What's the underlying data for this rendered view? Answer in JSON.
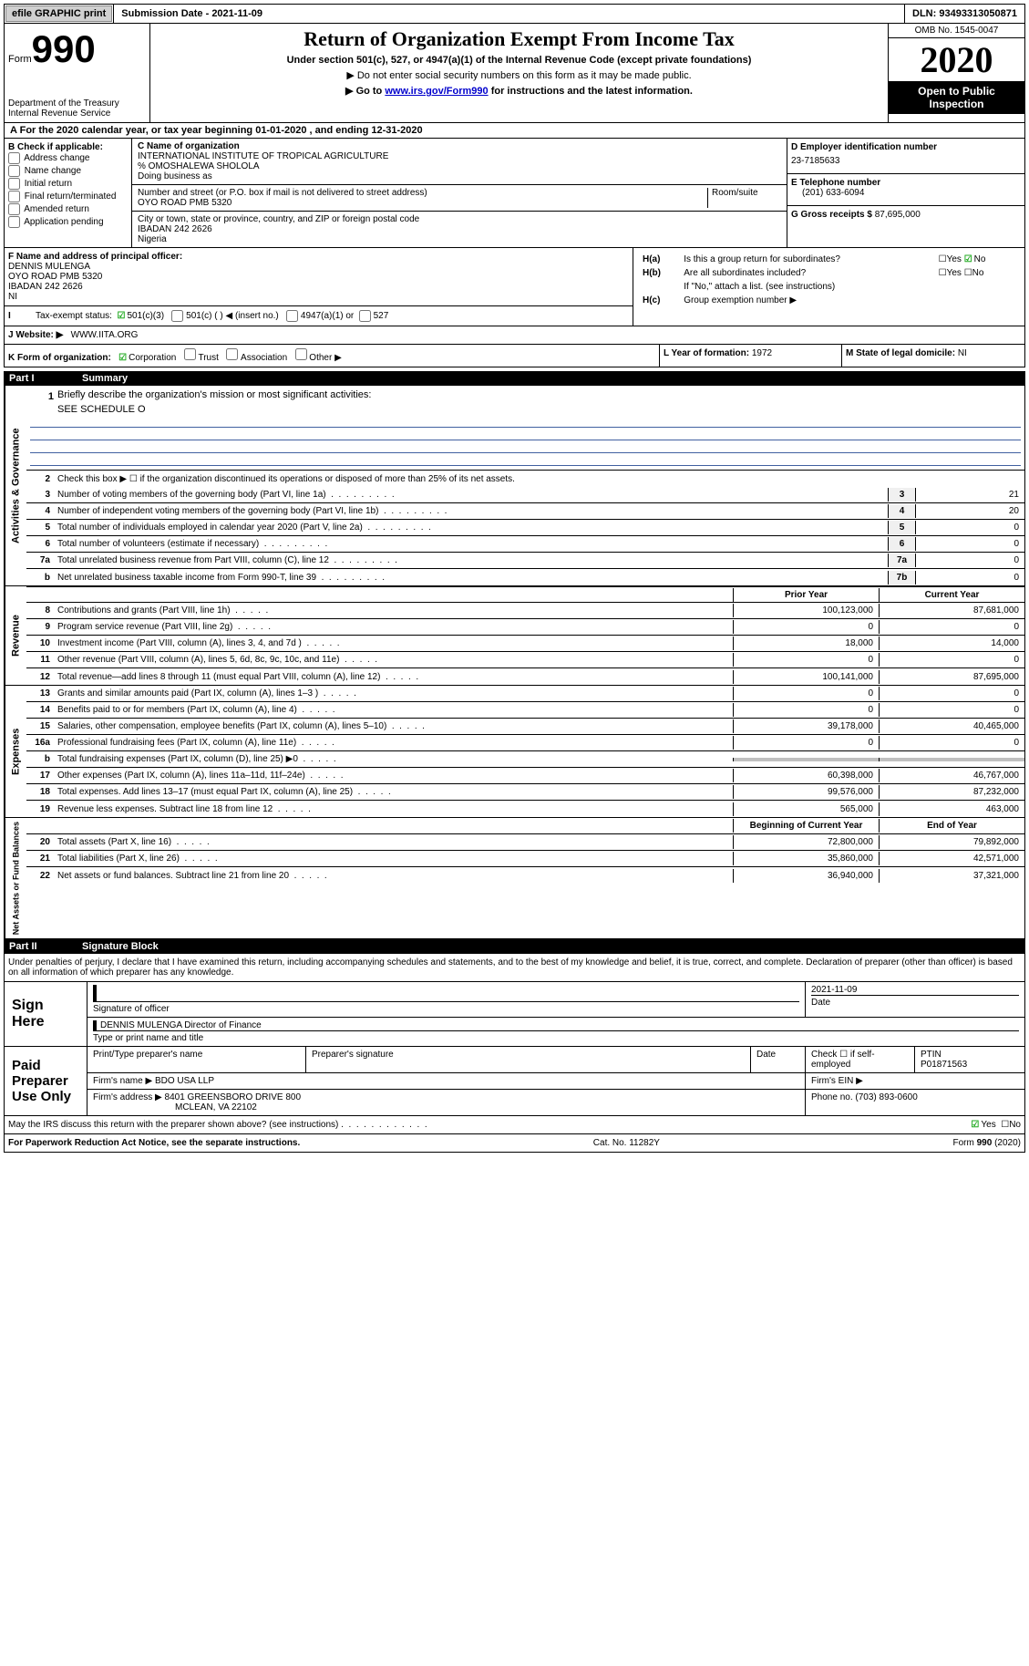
{
  "topbar": {
    "efile_btn": "efile GRAPHIC print",
    "submission_label": "Submission Date - 2021-11-09",
    "dln": "DLN: 93493313050871"
  },
  "header": {
    "form_label": "Form",
    "form_number": "990",
    "dept": "Department of the Treasury\nInternal Revenue Service",
    "title": "Return of Organization Exempt From Income Tax",
    "subtitle": "Under section 501(c), 527, or 4947(a)(1) of the Internal Revenue Code (except private foundations)",
    "line2": "Do not enter social security numbers on this form as it may be made public.",
    "line3_pre": "Go to ",
    "line3_link": "www.irs.gov/Form990",
    "line3_post": " for instructions and the latest information.",
    "omb": "OMB No. 1545-0047",
    "year": "2020",
    "inspection": "Open to Public Inspection"
  },
  "row_a": "For the 2020 calendar year, or tax year beginning 01-01-2020    , and ending 12-31-2020",
  "box_b": {
    "header": "B Check if applicable:",
    "opts": [
      "Address change",
      "Name change",
      "Initial return",
      "Final return/terminated",
      "Amended return",
      "Application pending"
    ]
  },
  "box_c": {
    "name_label": "C Name of organization",
    "name_value": "INTERNATIONAL INSTITUTE OF TROPICAL AGRICULTURE",
    "care_of": "% OMOSHALEWA SHOLOLA",
    "dba_label": "Doing business as",
    "street_label": "Number and street (or P.O. box if mail is not delivered to street address)",
    "street_value": "OYO ROAD PMB 5320",
    "room_label": "Room/suite",
    "city_label": "City or town, state or province, country, and ZIP or foreign postal code",
    "city_value": "IBADAN   242 2626",
    "country": "Nigeria"
  },
  "box_d": {
    "ein_label": "D Employer identification number",
    "ein_value": "23-7185633",
    "phone_label": "E Telephone number",
    "phone_value": "(201) 633-6094",
    "gross_label": "G Gross receipts $",
    "gross_value": "87,695,000"
  },
  "box_f": {
    "label": "F  Name and address of principal officer:",
    "name": "DENNIS MULENGA",
    "addr1": "OYO ROAD PMB 5320",
    "addr2": "IBADAN      242 2626",
    "addr3": "NI"
  },
  "box_h": {
    "ha": "Is this a group return for subordinates?",
    "hb": "Are all subordinates included?",
    "note": "If \"No,\" attach a list. (see instructions)",
    "hc": "Group exemption number ▶"
  },
  "row_i": {
    "label": "Tax-exempt status:",
    "o1": "501(c)(3)",
    "o2": "501(c) (   ) ◀ (insert no.)",
    "o3": "4947(a)(1) or",
    "o4": "527"
  },
  "row_j": {
    "label": "Website: ▶",
    "value": "WWW.IITA.ORG"
  },
  "row_k": {
    "label": "K Form of organization:",
    "opts": [
      "Corporation",
      "Trust",
      "Association",
      "Other ▶"
    ],
    "year_label": "L Year of formation:",
    "year_value": "1972",
    "state_label": "M State of legal domicile:",
    "state_value": "NI"
  },
  "parts": {
    "p1_num": "Part I",
    "p1_title": "Summary",
    "p2_num": "Part II",
    "p2_title": "Signature Block"
  },
  "summary": {
    "line1_label": "Briefly describe the organization's mission or most significant activities:",
    "line1_value": "SEE SCHEDULE O",
    "line2": "Check this box ▶ ☐  if the organization discontinued its operations or disposed of more than 25% of its net assets.",
    "prior_header": "Prior Year",
    "current_header": "Current Year",
    "begin_header": "Beginning of Current Year",
    "end_header": "End of Year",
    "rows_gov": [
      {
        "n": "3",
        "d": "Number of voting members of the governing body (Part VI, line 1a)",
        "k": "3",
        "v": "21"
      },
      {
        "n": "4",
        "d": "Number of independent voting members of the governing body (Part VI, line 1b)",
        "k": "4",
        "v": "20"
      },
      {
        "n": "5",
        "d": "Total number of individuals employed in calendar year 2020 (Part V, line 2a)",
        "k": "5",
        "v": "0"
      },
      {
        "n": "6",
        "d": "Total number of volunteers (estimate if necessary)",
        "k": "6",
        "v": "0"
      },
      {
        "n": "7a",
        "d": "Total unrelated business revenue from Part VIII, column (C), line 12",
        "k": "7a",
        "v": "0"
      },
      {
        "n": "b",
        "d": "Net unrelated business taxable income from Form 990-T, line 39",
        "k": "7b",
        "v": "0"
      }
    ],
    "rows_rev": [
      {
        "n": "8",
        "d": "Contributions and grants (Part VIII, line 1h)",
        "p": "100,123,000",
        "c": "87,681,000"
      },
      {
        "n": "9",
        "d": "Program service revenue (Part VIII, line 2g)",
        "p": "0",
        "c": "0"
      },
      {
        "n": "10",
        "d": "Investment income (Part VIII, column (A), lines 3, 4, and 7d )",
        "p": "18,000",
        "c": "14,000"
      },
      {
        "n": "11",
        "d": "Other revenue (Part VIII, column (A), lines 5, 6d, 8c, 9c, 10c, and 11e)",
        "p": "0",
        "c": "0"
      },
      {
        "n": "12",
        "d": "Total revenue—add lines 8 through 11 (must equal Part VIII, column (A), line 12)",
        "p": "100,141,000",
        "c": "87,695,000"
      }
    ],
    "rows_exp": [
      {
        "n": "13",
        "d": "Grants and similar amounts paid (Part IX, column (A), lines 1–3 )",
        "p": "0",
        "c": "0"
      },
      {
        "n": "14",
        "d": "Benefits paid to or for members (Part IX, column (A), line 4)",
        "p": "0",
        "c": "0"
      },
      {
        "n": "15",
        "d": "Salaries, other compensation, employee benefits (Part IX, column (A), lines 5–10)",
        "p": "39,178,000",
        "c": "40,465,000"
      },
      {
        "n": "16a",
        "d": "Professional fundraising fees (Part IX, column (A), line 11e)",
        "p": "0",
        "c": "0"
      },
      {
        "n": "b",
        "d": "Total fundraising expenses (Part IX, column (D), line 25) ▶0",
        "p": "",
        "c": "",
        "grey": true
      },
      {
        "n": "17",
        "d": "Other expenses (Part IX, column (A), lines 11a–11d, 11f–24e)",
        "p": "60,398,000",
        "c": "46,767,000"
      },
      {
        "n": "18",
        "d": "Total expenses. Add lines 13–17 (must equal Part IX, column (A), line 25)",
        "p": "99,576,000",
        "c": "87,232,000"
      },
      {
        "n": "19",
        "d": "Revenue less expenses. Subtract line 18 from line 12",
        "p": "565,000",
        "c": "463,000"
      }
    ],
    "rows_net": [
      {
        "n": "20",
        "d": "Total assets (Part X, line 16)",
        "p": "72,800,000",
        "c": "79,892,000"
      },
      {
        "n": "21",
        "d": "Total liabilities (Part X, line 26)",
        "p": "35,860,000",
        "c": "42,571,000"
      },
      {
        "n": "22",
        "d": "Net assets or fund balances. Subtract line 21 from line 20",
        "p": "36,940,000",
        "c": "37,321,000"
      }
    ]
  },
  "vert_labels": {
    "gov": "Activities & Governance",
    "rev": "Revenue",
    "exp": "Expenses",
    "net": "Net Assets or Fund Balances"
  },
  "penalties": "Under penalties of perjury, I declare that I have examined this return, including accompanying schedules and statements, and to the best of my knowledge and belief, it is true, correct, and complete. Declaration of preparer (other than officer) is based on all information of which preparer has any knowledge.",
  "sign": {
    "label": "Sign Here",
    "sig_of_officer": "Signature of officer",
    "date_label": "Date",
    "date_value": "2021-11-09",
    "name_title": "DENNIS MULENGA Director of Finance",
    "type_label": "Type or print name and title"
  },
  "preparer": {
    "label": "Paid Preparer Use Only",
    "col1": "Print/Type preparer's name",
    "col2": "Preparer's signature",
    "col3": "Date",
    "col4": "Check ☐ if self-employed",
    "col5_label": "PTIN",
    "col5_value": "P01871563",
    "firm_name_label": "Firm's name    ▶",
    "firm_name": "BDO USA LLP",
    "firm_ein_label": "Firm's EIN ▶",
    "firm_addr_label": "Firm's address ▶",
    "firm_addr": "8401 GREENSBORO DRIVE 800",
    "firm_addr2": "MCLEAN, VA  22102",
    "phone_label": "Phone no.",
    "phone": "(703) 893-0600"
  },
  "discuss": "May the IRS discuss this return with the preparer shown above? (see instructions)",
  "footer": {
    "left": "For Paperwork Reduction Act Notice, see the separate instructions.",
    "mid": "Cat. No. 11282Y",
    "right": "Form 990 (2020)"
  }
}
